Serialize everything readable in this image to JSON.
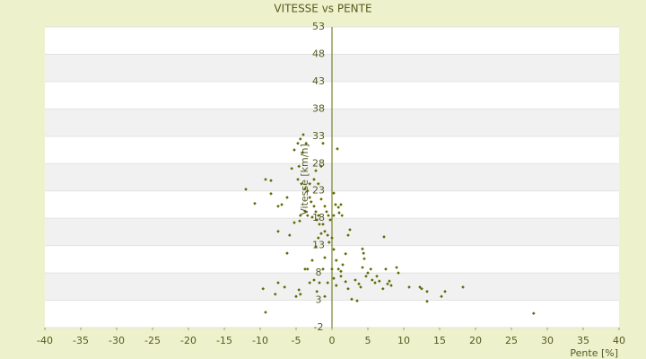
{
  "chart_data": {
    "type": "scatter",
    "title": "VITESSE vs PENTE",
    "x_label": "Pente [%]",
    "y_label": "Vitesse [km/h]",
    "color": "#5f6a00",
    "grid": true,
    "xlim": [
      -40,
      40
    ],
    "xticks": [
      -40,
      -35,
      -30,
      -25,
      -20,
      -15,
      -10,
      -5,
      0,
      5,
      10,
      15,
      20,
      25,
      30,
      35,
      40
    ],
    "ylim": [
      -2,
      53
    ],
    "yticks": [
      -2,
      3,
      8,
      13,
      18,
      23,
      28,
      33,
      38,
      43,
      48,
      53
    ],
    "x": [
      -12,
      -10.75,
      -9.25,
      -8.5,
      -8.5,
      -7.5,
      -7,
      -6.25,
      -5.6,
      -5.25,
      -4.75,
      -4.4,
      -4,
      -3.6,
      -4.1,
      -4.6,
      -4.75,
      -4.25,
      -3.75,
      -3.4,
      -3.1,
      -2.9,
      -2.5,
      -2.25,
      -1.9,
      -3.4,
      -2.75,
      -2.1,
      -1.75,
      -1.25,
      -1.5,
      -1,
      -0.75,
      -0.5,
      -0.25,
      0.25,
      0.25,
      0.5,
      0.9,
      1,
      1.4,
      1.25,
      0.75,
      -1.25,
      -1.5,
      -2.25,
      -2.5,
      -3.1,
      -1.9,
      -7.5,
      -6.25,
      -5.25,
      -4.4,
      -3.4,
      -2.75,
      -2.25,
      -1.9,
      -1.5,
      -1,
      -0.6,
      -0.4,
      0,
      0.25,
      0.6,
      0.9,
      1.25,
      1.5,
      1.9,
      2.25,
      2.5,
      -1,
      -1.25,
      -1.75,
      -2.1,
      -2.5,
      -3.1,
      -3.75,
      -4.6,
      -4.4,
      -5,
      -6.6,
      -7.5,
      -7.9,
      -9.6,
      -9.25,
      -1,
      -0.6,
      0,
      0.25,
      0.6,
      1.25,
      1.9,
      2.25,
      2.75,
      3.25,
      3.75,
      4,
      4.25,
      4.4,
      4.5,
      4.25,
      4.75,
      5,
      5.4,
      5.6,
      6,
      6.25,
      6.6,
      7.1,
      7.25,
      7.5,
      7.75,
      8,
      8.25,
      9,
      9.25,
      10.75,
      12.25,
      12.5,
      13.25,
      13.25,
      15.25,
      15.75,
      18.25,
      28.1,
      3.5,
      -5.9,
      -4.5,
      -3.75
    ],
    "values": [
      23.3,
      20.7,
      25.1,
      24.9,
      22.5,
      20.2,
      20.5,
      21.8,
      27.1,
      30.5,
      31.7,
      32.5,
      33.3,
      31.7,
      30,
      27.5,
      25.1,
      24.3,
      23.4,
      23,
      21.8,
      21,
      20.2,
      19.2,
      18.5,
      18.5,
      18.2,
      17.7,
      16.9,
      16.9,
      21.5,
      20.2,
      19.2,
      18.5,
      17.7,
      18.5,
      22.6,
      20.5,
      20,
      19,
      18.5,
      20.5,
      30.7,
      31.7,
      27.5,
      26.7,
      25.1,
      24.3,
      24.3,
      15.6,
      11.6,
      17.2,
      18.5,
      8.7,
      10.3,
      12.8,
      14.4,
      15.2,
      15.6,
      14.9,
      13.6,
      14.4,
      12.3,
      10.3,
      8.7,
      7.4,
      9.5,
      11.5,
      14.9,
      15.9,
      10.8,
      8.7,
      6.2,
      4.6,
      6.7,
      6.2,
      8.7,
      4.9,
      4.1,
      3.7,
      5.4,
      6.2,
      4.1,
      5.1,
      0.8,
      3.7,
      6.2,
      8.7,
      7,
      5.7,
      8.3,
      6.4,
      5.1,
      3.2,
      6.7,
      6,
      5.4,
      12.4,
      11.6,
      10.6,
      9,
      7.4,
      8,
      8.7,
      6.7,
      6.2,
      7.4,
      6.5,
      5.1,
      14.6,
      8.7,
      6,
      6.5,
      5.7,
      9,
      8,
      5.4,
      5.4,
      5.1,
      4.6,
      2.8,
      3.7,
      4.6,
      5.4,
      0.6,
      2.9,
      14.9,
      17.5,
      19.3
    ]
  }
}
